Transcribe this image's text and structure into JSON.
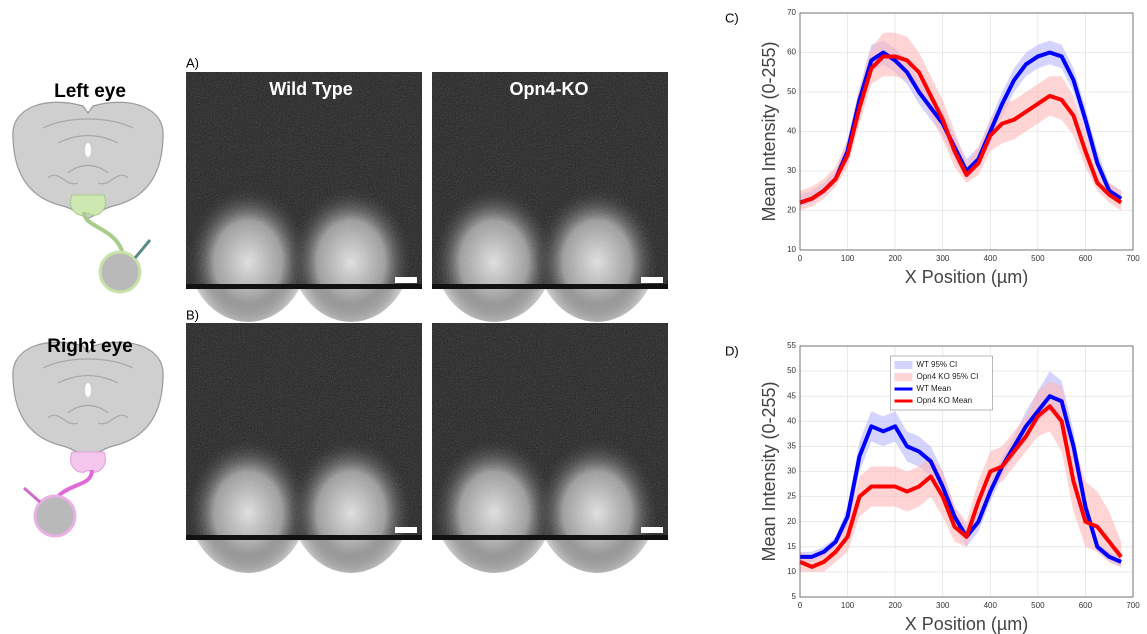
{
  "figure": {
    "rows": [
      "Left eye",
      "Right eye"
    ],
    "columns": [
      "Wild Type",
      "Opn4-KO"
    ],
    "panels": [
      "A)",
      "B)"
    ]
  },
  "chart_data": [
    {
      "type": "line",
      "label": "C)",
      "x_label": "X Position (µm)",
      "y_label": "Mean Intensity (0-255)",
      "x": [
        0,
        25,
        50,
        75,
        100,
        125,
        150,
        175,
        200,
        225,
        250,
        275,
        300,
        325,
        350,
        375,
        400,
        425,
        450,
        475,
        500,
        525,
        550,
        575,
        600,
        625,
        650,
        675
      ],
      "xlim": [
        0,
        700
      ],
      "xticks": [
        0,
        100,
        200,
        300,
        400,
        500,
        600,
        700
      ],
      "ylim": [
        10,
        70
      ],
      "yticks": [
        10,
        20,
        30,
        40,
        50,
        60,
        70
      ],
      "grid": true,
      "series": [
        {
          "color": "#b8b8ff",
          "lower": [
            21,
            22,
            24,
            27,
            33,
            45,
            55,
            57,
            55,
            52,
            47,
            43,
            39,
            33,
            28,
            31,
            37,
            44,
            50,
            54,
            56,
            57,
            56,
            50,
            40,
            30,
            24,
            22
          ],
          "upper": [
            24,
            25,
            27,
            30,
            38,
            51,
            62,
            63,
            61,
            58,
            53,
            49,
            45,
            39,
            33,
            36,
            43,
            50,
            56,
            60,
            62,
            63,
            62,
            56,
            46,
            35,
            27,
            25
          ]
        },
        {
          "color": "#ffb8b8",
          "lower": [
            20,
            21,
            23,
            26,
            31,
            42,
            52,
            54,
            54,
            53,
            50,
            44,
            38,
            31,
            27,
            29,
            35,
            37,
            38,
            40,
            42,
            44,
            43,
            39,
            31,
            25,
            22,
            20
          ],
          "upper": [
            25,
            26,
            28,
            31,
            38,
            51,
            61,
            65,
            65,
            64,
            60,
            54,
            48,
            40,
            32,
            36,
            43,
            47,
            48,
            50,
            52,
            54,
            54,
            49,
            40,
            30,
            27,
            25
          ]
        },
        {
          "color": "#0000ff",
          "values": [
            22,
            23,
            25,
            28,
            35,
            48,
            58,
            60,
            58,
            55,
            50,
            46,
            42,
            36,
            30,
            33,
            40,
            47,
            53,
            57,
            59,
            60,
            59,
            53,
            43,
            32,
            25,
            23
          ]
        },
        {
          "color": "#ff0000",
          "values": [
            22,
            23,
            25,
            28,
            34,
            46,
            56,
            59,
            59,
            58,
            55,
            49,
            43,
            35,
            29,
            32,
            39,
            42,
            43,
            45,
            47,
            49,
            48,
            44,
            35,
            27,
            24,
            22
          ]
        }
      ]
    },
    {
      "type": "line",
      "label": "D)",
      "x_label": "X Position (µm)",
      "y_label": "Mean Intensity (0-255)",
      "x": [
        0,
        25,
        50,
        75,
        100,
        125,
        150,
        175,
        200,
        225,
        250,
        275,
        300,
        325,
        350,
        375,
        400,
        425,
        450,
        475,
        500,
        525,
        550,
        575,
        600,
        625,
        650,
        675
      ],
      "xlim": [
        0,
        700
      ],
      "xticks": [
        0,
        100,
        200,
        300,
        400,
        500,
        600,
        700
      ],
      "ylim": [
        5,
        55
      ],
      "yticks": [
        5,
        10,
        15,
        20,
        25,
        30,
        35,
        40,
        45,
        50,
        55
      ],
      "grid": true,
      "legend": "upper center",
      "series": [
        {
          "name": "WT 95% CI",
          "color": "#b8b8ff",
          "lower": [
            12,
            12,
            13,
            15,
            19,
            30,
            36,
            35,
            36,
            32,
            31,
            29,
            24,
            19,
            15,
            18,
            24,
            29,
            33,
            37,
            40,
            42,
            41,
            32,
            21,
            14,
            12,
            11
          ],
          "upper": [
            14,
            14,
            15,
            17,
            23,
            36,
            42,
            41,
            42,
            38,
            37,
            35,
            30,
            23,
            19,
            22,
            28,
            33,
            37,
            42,
            46,
            50,
            48,
            38,
            25,
            16,
            14,
            13
          ]
        },
        {
          "name": "Opn4 KO 95% CI",
          "color": "#ffb8b8",
          "lower": [
            10,
            10,
            10,
            12,
            14,
            21,
            23,
            23,
            23,
            22,
            23,
            25,
            21,
            16,
            15,
            21,
            27,
            28,
            31,
            34,
            37,
            38,
            34,
            22,
            15,
            14,
            12,
            11
          ],
          "upper": [
            14,
            13,
            14,
            16,
            20,
            29,
            31,
            31,
            31,
            30,
            31,
            33,
            30,
            23,
            20,
            28,
            34,
            35,
            38,
            41,
            46,
            48,
            47,
            36,
            28,
            26,
            22,
            16
          ]
        },
        {
          "name": "WT Mean",
          "color": "#0000ff",
          "values": [
            13,
            13,
            14,
            16,
            21,
            33,
            39,
            38,
            39,
            35,
            34,
            32,
            27,
            21,
            17,
            20,
            26,
            31,
            35,
            39,
            42,
            45,
            44,
            35,
            23,
            15,
            13,
            12
          ]
        },
        {
          "name": "Opn4 KO Mean",
          "color": "#ff0000",
          "values": [
            12,
            11,
            12,
            14,
            17,
            25,
            27,
            27,
            27,
            26,
            27,
            29,
            25,
            19,
            17,
            24,
            30,
            31,
            34,
            37,
            41,
            43,
            40,
            28,
            20,
            19,
            16,
            13
          ]
        }
      ]
    }
  ]
}
